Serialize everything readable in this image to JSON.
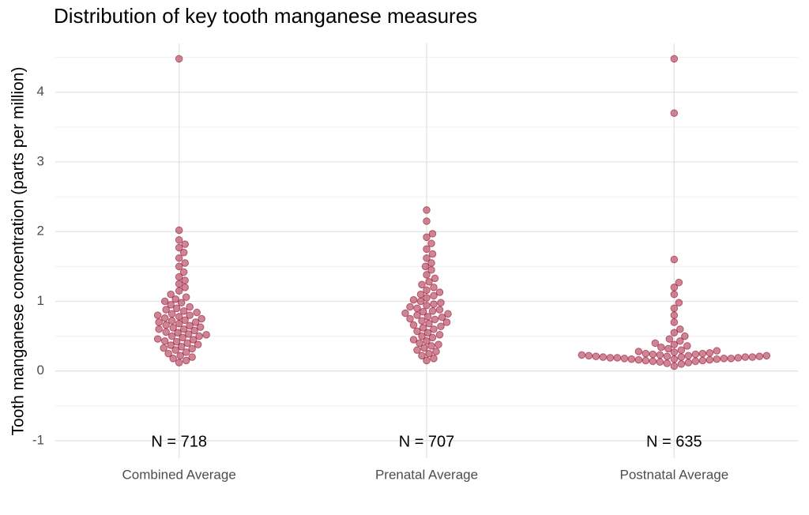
{
  "chart_data": {
    "type": "beeswarm",
    "title": "Distribution of key tooth manganese measures",
    "y_label": "Tooth manganese concentration (parts per million)",
    "categories": [
      "Combined Average",
      "Prenatal Average",
      "Postnatal Average"
    ],
    "annotations": [
      "N = 718",
      "N = 707",
      "N = 635"
    ],
    "color": "#9b0d2d",
    "grid": true,
    "ylim": [
      -1.25,
      4.7
    ],
    "yticks": [
      -1,
      0,
      1,
      2,
      3,
      4
    ],
    "minor_yticks": [
      -0.5,
      0.5,
      1.5,
      2.5,
      3.5,
      4.5
    ],
    "values": [
      [
        0.12,
        0.15,
        0.18,
        0.2,
        0.22,
        0.25,
        0.27,
        0.3,
        0.32,
        0.33,
        0.35,
        0.37,
        0.38,
        0.4,
        0.42,
        0.43,
        0.45,
        0.46,
        0.48,
        0.5,
        0.5,
        0.52,
        0.53,
        0.55,
        0.56,
        0.58,
        0.6,
        0.6,
        0.62,
        0.63,
        0.65,
        0.66,
        0.68,
        0.7,
        0.7,
        0.72,
        0.73,
        0.75,
        0.76,
        0.78,
        0.8,
        0.8,
        0.82,
        0.84,
        0.86,
        0.88,
        0.9,
        0.92,
        0.95,
        0.98,
        1.0,
        1.03,
        1.06,
        1.1,
        1.15,
        1.2,
        1.25,
        1.3,
        1.35,
        1.42,
        1.5,
        1.55,
        1.62,
        1.7,
        1.77,
        1.82,
        1.88,
        2.02,
        4.48
      ],
      [
        0.15,
        0.18,
        0.22,
        0.25,
        0.28,
        0.3,
        0.33,
        0.36,
        0.38,
        0.4,
        0.43,
        0.45,
        0.48,
        0.5,
        0.52,
        0.55,
        0.57,
        0.6,
        0.62,
        0.64,
        0.66,
        0.68,
        0.7,
        0.72,
        0.74,
        0.75,
        0.77,
        0.78,
        0.8,
        0.82,
        0.83,
        0.85,
        0.86,
        0.88,
        0.9,
        0.92,
        0.94,
        0.96,
        0.98,
        1.0,
        1.02,
        1.05,
        1.08,
        1.1,
        1.13,
        1.16,
        1.2,
        1.24,
        1.28,
        1.33,
        1.38,
        1.45,
        1.5,
        1.55,
        1.62,
        1.68,
        1.75,
        1.83,
        1.92,
        1.97,
        2.15,
        2.31
      ],
      [
        0.07,
        0.1,
        0.11,
        0.12,
        0.13,
        0.14,
        0.14,
        0.15,
        0.15,
        0.16,
        0.16,
        0.17,
        0.17,
        0.17,
        0.18,
        0.18,
        0.18,
        0.19,
        0.19,
        0.19,
        0.2,
        0.2,
        0.2,
        0.2,
        0.21,
        0.21,
        0.21,
        0.22,
        0.22,
        0.22,
        0.23,
        0.23,
        0.24,
        0.24,
        0.25,
        0.25,
        0.26,
        0.27,
        0.28,
        0.29,
        0.3,
        0.32,
        0.34,
        0.36,
        0.38,
        0.4,
        0.43,
        0.46,
        0.5,
        0.55,
        0.6,
        0.7,
        0.8,
        0.9,
        0.98,
        1.1,
        1.2,
        1.27,
        1.6,
        3.7,
        4.48
      ]
    ]
  }
}
